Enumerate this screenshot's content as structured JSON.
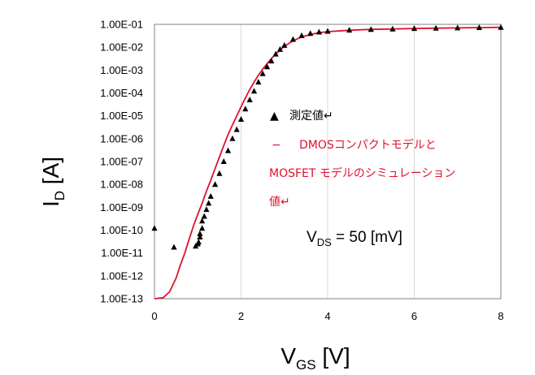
{
  "chart_data": {
    "type": "scatter",
    "y_scale": "log",
    "xlim": [
      0,
      8
    ],
    "ylim": [
      1e-13,
      0.1
    ],
    "grid": {
      "x": true,
      "y": false
    },
    "xticks": [
      0,
      2,
      4,
      6,
      8
    ],
    "x_tick_labels": [
      "0",
      "2",
      "4",
      "6",
      "8"
    ],
    "y_tick_labels": [
      "1.00E-13",
      "1.00E-12",
      "1.00E-11",
      "1.00E-10",
      "1.00E-09",
      "1.00E-08",
      "1.00E-07",
      "1.00E-06",
      "1.00E-05",
      "1.00E-04",
      "1.00E-03",
      "1.00E-02",
      "1.00E-01"
    ],
    "xlabel": {
      "main": "V",
      "sub": "GS",
      "unit": " [V]"
    },
    "ylabel": {
      "main": "I",
      "sub": "D",
      "unit": " [A]"
    },
    "legend": {
      "marker_symbol": "▲",
      "measured_label": "測定値↵",
      "line_symbol": "−",
      "sim_label_line1": "DMOSコンパクトモデルと",
      "sim_label_line2": "MOSFET モデルのシミュレーション",
      "sim_label_line3": "値↵"
    },
    "annotation": {
      "main": "V",
      "sub": "DS",
      "rest": " = 50 [mV]"
    },
    "colors": {
      "measured": "#000000",
      "simulation": "#e0102c"
    },
    "series": [
      {
        "kind": "scatter",
        "x": [
          0.0,
          0.45,
          0.95,
          1.0,
          1.02,
          1.05,
          1.05,
          1.1,
          1.1,
          1.15,
          1.2,
          1.25,
          1.3,
          1.4,
          1.5,
          1.6,
          1.7,
          1.8,
          1.9,
          2.0,
          2.1,
          2.2,
          2.3,
          2.4,
          2.5,
          2.6,
          2.7,
          2.8,
          2.9,
          3.0,
          3.2,
          3.4,
          3.6,
          3.8,
          4.0,
          4.5,
          5.0,
          5.5,
          6.0,
          6.5,
          7.0,
          7.5,
          8.0
        ],
        "y": [
          1.2e-10,
          1.8e-11,
          2e-11,
          2.5e-11,
          3e-11,
          5e-11,
          7e-11,
          1.2e-10,
          2.5e-10,
          4e-10,
          8e-10,
          1.5e-09,
          3e-09,
          1e-08,
          3e-08,
          1e-07,
          3e-07,
          1e-06,
          2.5e-06,
          7e-06,
          2e-05,
          5e-05,
          0.00012,
          0.0003,
          0.0007,
          0.0014,
          0.0025,
          0.005,
          0.008,
          0.012,
          0.022,
          0.032,
          0.04,
          0.046,
          0.05,
          0.056,
          0.06,
          0.063,
          0.066,
          0.068,
          0.07,
          0.072,
          0.074
        ]
      },
      {
        "kind": "line",
        "x": [
          0.0,
          0.2,
          0.35,
          0.5,
          0.6,
          0.7,
          0.8,
          0.9,
          1.0,
          1.1,
          1.2,
          1.3,
          1.4,
          1.5,
          1.6,
          1.7,
          1.8,
          1.9,
          2.0,
          2.1,
          2.2,
          2.3,
          2.4,
          2.5,
          2.6,
          2.7,
          2.8,
          2.9,
          3.0,
          3.2,
          3.4,
          3.6,
          3.8,
          4.0,
          4.5,
          5.0,
          5.5,
          6.0,
          6.5,
          7.0,
          7.5,
          8.0
        ],
        "y": [
          1e-13,
          1.1e-13,
          2e-13,
          8e-13,
          3e-12,
          1e-11,
          4e-11,
          1.5e-10,
          5e-10,
          1.5e-09,
          5e-09,
          1.5e-08,
          5e-08,
          1.6e-07,
          5e-07,
          1.5e-06,
          4e-06,
          1e-05,
          2.5e-05,
          6e-05,
          0.00014,
          0.0003,
          0.0006,
          0.0011,
          0.0019,
          0.0032,
          0.005,
          0.0075,
          0.011,
          0.019,
          0.028,
          0.036,
          0.043,
          0.048,
          0.055,
          0.06,
          0.063,
          0.066,
          0.068,
          0.07,
          0.072,
          0.074
        ]
      }
    ]
  }
}
